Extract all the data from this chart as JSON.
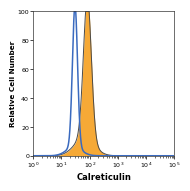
{
  "title": "",
  "xlabel": "Calreticulin",
  "ylabel": "Relative Cell Number",
  "xlim": [
    1,
    100000
  ],
  "ylim": [
    0,
    100
  ],
  "yticks": [
    0,
    20,
    40,
    60,
    80,
    100
  ],
  "background_color": "#ffffff",
  "isotype_color": "#3a6abf",
  "filled_color": "#f5a020",
  "filled_edge_color": "#4a4a4a",
  "filled_alpha": 0.9,
  "iso_peak_log": 1.48,
  "iso_sigma": 0.09,
  "fill_peak_log": 1.92,
  "fill_sigma": 0.14,
  "peak_height": 98
}
